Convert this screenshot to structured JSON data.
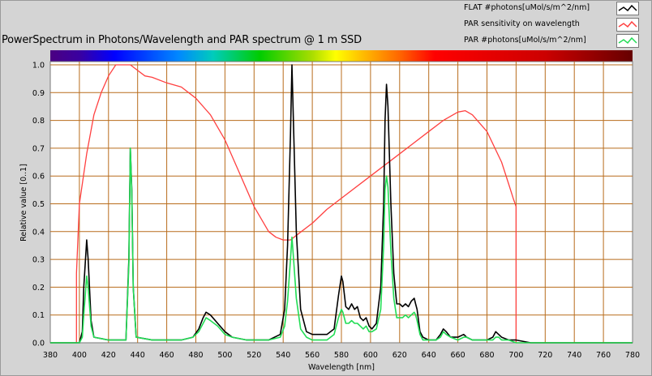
{
  "chart_data": {
    "type": "line",
    "title": "PowerSpectrum in Photons/Wavelength and PAR spectrum @ 1 m SSD",
    "xlabel": "Wavelength [nm]",
    "ylabel": "Relative value [0..1]",
    "xlim": [
      380,
      780
    ],
    "ylim": [
      0,
      1.0
    ],
    "x_ticks": [
      380,
      400,
      420,
      440,
      460,
      480,
      500,
      520,
      540,
      560,
      580,
      600,
      620,
      640,
      660,
      680,
      700,
      720,
      740,
      760,
      780
    ],
    "y_ticks": [
      0.0,
      0.1,
      0.2,
      0.3,
      0.4,
      0.5,
      0.6,
      0.7,
      0.8,
      0.9,
      1.0
    ],
    "grid": true,
    "legend_position": "top-right",
    "series": [
      {
        "name": "FLAT #photons[uMol/s/m^2/nm]",
        "color": "#000000",
        "points": [
          [
            380,
            0
          ],
          [
            400,
            0
          ],
          [
            402,
            0.04
          ],
          [
            403,
            0.2
          ],
          [
            405,
            0.37
          ],
          [
            406,
            0.3
          ],
          [
            408,
            0.08
          ],
          [
            410,
            0.02
          ],
          [
            420,
            0.01
          ],
          [
            432,
            0.01
          ],
          [
            434,
            0.3
          ],
          [
            435,
            0.7
          ],
          [
            436,
            0.55
          ],
          [
            437,
            0.2
          ],
          [
            439,
            0.02
          ],
          [
            450,
            0.01
          ],
          [
            470,
            0.01
          ],
          [
            478,
            0.02
          ],
          [
            482,
            0.05
          ],
          [
            485,
            0.09
          ],
          [
            487,
            0.11
          ],
          [
            490,
            0.1
          ],
          [
            495,
            0.07
          ],
          [
            500,
            0.04
          ],
          [
            505,
            0.02
          ],
          [
            515,
            0.01
          ],
          [
            530,
            0.01
          ],
          [
            538,
            0.03
          ],
          [
            541,
            0.12
          ],
          [
            543,
            0.35
          ],
          [
            545,
            0.75
          ],
          [
            546,
            1.0
          ],
          [
            547,
            0.8
          ],
          [
            549,
            0.4
          ],
          [
            552,
            0.12
          ],
          [
            556,
            0.04
          ],
          [
            560,
            0.03
          ],
          [
            570,
            0.03
          ],
          [
            575,
            0.05
          ],
          [
            578,
            0.17
          ],
          [
            580,
            0.24
          ],
          [
            581,
            0.22
          ],
          [
            583,
            0.13
          ],
          [
            585,
            0.12
          ],
          [
            587,
            0.14
          ],
          [
            589,
            0.12
          ],
          [
            591,
            0.13
          ],
          [
            593,
            0.09
          ],
          [
            595,
            0.08
          ],
          [
            597,
            0.09
          ],
          [
            599,
            0.06
          ],
          [
            601,
            0.05
          ],
          [
            604,
            0.07
          ],
          [
            607,
            0.2
          ],
          [
            609,
            0.5
          ],
          [
            610,
            0.8
          ],
          [
            611,
            0.93
          ],
          [
            612,
            0.85
          ],
          [
            614,
            0.5
          ],
          [
            616,
            0.25
          ],
          [
            618,
            0.14
          ],
          [
            620,
            0.14
          ],
          [
            622,
            0.13
          ],
          [
            624,
            0.14
          ],
          [
            626,
            0.13
          ],
          [
            628,
            0.15
          ],
          [
            630,
            0.16
          ],
          [
            631,
            0.14
          ],
          [
            632,
            0.12
          ],
          [
            634,
            0.04
          ],
          [
            636,
            0.02
          ],
          [
            640,
            0.01
          ],
          [
            645,
            0.01
          ],
          [
            648,
            0.03
          ],
          [
            650,
            0.05
          ],
          [
            652,
            0.04
          ],
          [
            655,
            0.02
          ],
          [
            660,
            0.02
          ],
          [
            664,
            0.03
          ],
          [
            666,
            0.02
          ],
          [
            670,
            0.01
          ],
          [
            680,
            0.01
          ],
          [
            684,
            0.02
          ],
          [
            686,
            0.04
          ],
          [
            688,
            0.03
          ],
          [
            690,
            0.02
          ],
          [
            695,
            0.01
          ],
          [
            700,
            0.01
          ],
          [
            710,
            0
          ],
          [
            780,
            0
          ]
        ]
      },
      {
        "name": "PAR sensitivity on wavelength",
        "color": "#ff4040",
        "points": [
          [
            380,
            0
          ],
          [
            398,
            0
          ],
          [
            398,
            0.25
          ],
          [
            400,
            0.5
          ],
          [
            405,
            0.68
          ],
          [
            410,
            0.82
          ],
          [
            415,
            0.9
          ],
          [
            420,
            0.96
          ],
          [
            425,
            1.0
          ],
          [
            435,
            1.0
          ],
          [
            440,
            0.98
          ],
          [
            445,
            0.96
          ],
          [
            450,
            0.955
          ],
          [
            460,
            0.935
          ],
          [
            470,
            0.92
          ],
          [
            480,
            0.88
          ],
          [
            490,
            0.82
          ],
          [
            500,
            0.73
          ],
          [
            510,
            0.61
          ],
          [
            520,
            0.49
          ],
          [
            530,
            0.4
          ],
          [
            535,
            0.38
          ],
          [
            540,
            0.37
          ],
          [
            545,
            0.37
          ],
          [
            550,
            0.39
          ],
          [
            560,
            0.43
          ],
          [
            570,
            0.48
          ],
          [
            580,
            0.52
          ],
          [
            600,
            0.6
          ],
          [
            620,
            0.68
          ],
          [
            640,
            0.76
          ],
          [
            650,
            0.8
          ],
          [
            660,
            0.83
          ],
          [
            665,
            0.835
          ],
          [
            670,
            0.82
          ],
          [
            680,
            0.76
          ],
          [
            690,
            0.65
          ],
          [
            695,
            0.57
          ],
          [
            698,
            0.52
          ],
          [
            700,
            0.49
          ],
          [
            700,
            0
          ],
          [
            780,
            0
          ]
        ]
      },
      {
        "name": "PAR #photons[uMol/s/m^2/nm]",
        "color": "#22dd55",
        "points": [
          [
            380,
            0
          ],
          [
            400,
            0
          ],
          [
            402,
            0.02
          ],
          [
            403,
            0.1
          ],
          [
            405,
            0.24
          ],
          [
            406,
            0.2
          ],
          [
            408,
            0.06
          ],
          [
            410,
            0.02
          ],
          [
            420,
            0.01
          ],
          [
            432,
            0.01
          ],
          [
            434,
            0.28
          ],
          [
            435,
            0.7
          ],
          [
            436,
            0.54
          ],
          [
            437,
            0.2
          ],
          [
            439,
            0.02
          ],
          [
            450,
            0.01
          ],
          [
            470,
            0.01
          ],
          [
            478,
            0.02
          ],
          [
            482,
            0.04
          ],
          [
            485,
            0.07
          ],
          [
            487,
            0.09
          ],
          [
            490,
            0.08
          ],
          [
            495,
            0.06
          ],
          [
            500,
            0.03
          ],
          [
            505,
            0.02
          ],
          [
            515,
            0.01
          ],
          [
            530,
            0.01
          ],
          [
            538,
            0.02
          ],
          [
            541,
            0.06
          ],
          [
            543,
            0.15
          ],
          [
            545,
            0.3
          ],
          [
            546,
            0.38
          ],
          [
            547,
            0.31
          ],
          [
            549,
            0.16
          ],
          [
            552,
            0.05
          ],
          [
            556,
            0.02
          ],
          [
            560,
            0.01
          ],
          [
            570,
            0.01
          ],
          [
            575,
            0.03
          ],
          [
            578,
            0.09
          ],
          [
            580,
            0.12
          ],
          [
            581,
            0.11
          ],
          [
            583,
            0.07
          ],
          [
            585,
            0.07
          ],
          [
            587,
            0.08
          ],
          [
            589,
            0.07
          ],
          [
            591,
            0.07
          ],
          [
            593,
            0.06
          ],
          [
            595,
            0.05
          ],
          [
            597,
            0.06
          ],
          [
            599,
            0.04
          ],
          [
            601,
            0.04
          ],
          [
            604,
            0.05
          ],
          [
            607,
            0.12
          ],
          [
            609,
            0.35
          ],
          [
            610,
            0.55
          ],
          [
            611,
            0.6
          ],
          [
            612,
            0.56
          ],
          [
            614,
            0.33
          ],
          [
            616,
            0.16
          ],
          [
            618,
            0.09
          ],
          [
            620,
            0.09
          ],
          [
            622,
            0.09
          ],
          [
            624,
            0.1
          ],
          [
            626,
            0.09
          ],
          [
            628,
            0.1
          ],
          [
            630,
            0.11
          ],
          [
            631,
            0.1
          ],
          [
            632,
            0.08
          ],
          [
            634,
            0.03
          ],
          [
            636,
            0.01
          ],
          [
            640,
            0.01
          ],
          [
            645,
            0.01
          ],
          [
            648,
            0.02
          ],
          [
            650,
            0.04
          ],
          [
            652,
            0.03
          ],
          [
            655,
            0.02
          ],
          [
            660,
            0.01
          ],
          [
            664,
            0.02
          ],
          [
            666,
            0.02
          ],
          [
            670,
            0.01
          ],
          [
            680,
            0.01
          ],
          [
            684,
            0.01
          ],
          [
            686,
            0.02
          ],
          [
            688,
            0.02
          ],
          [
            690,
            0.01
          ],
          [
            695,
            0.01
          ],
          [
            700,
            0
          ],
          [
            780,
            0
          ]
        ]
      }
    ]
  },
  "legend": {
    "items": [
      {
        "label": "FLAT #photons[uMol/s/m^2/nm]",
        "color": "#000000"
      },
      {
        "label": "PAR sensitivity on wavelength",
        "color": "#ff4040"
      },
      {
        "label": "PAR #photons[uMol/s/m^2/nm]",
        "color": "#22dd55"
      }
    ]
  },
  "colors": {
    "plot_background": "#ffffff",
    "grid": "#b86c1c",
    "window_background": "#d4d4d4"
  }
}
